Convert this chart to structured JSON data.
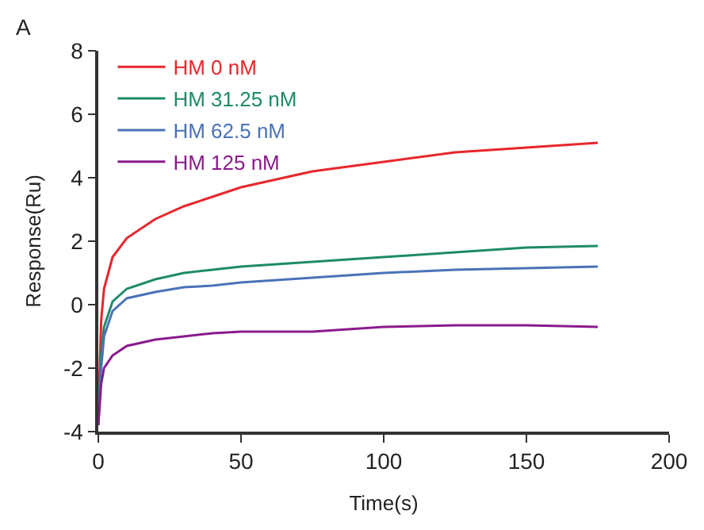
{
  "chart_data": {
    "type": "line",
    "xlabel": "Time(s)",
    "ylabel": "Response(Ru)",
    "annotations": [
      "A"
    ],
    "x": [
      0,
      1,
      2,
      5,
      10,
      20,
      30,
      40,
      50,
      75,
      100,
      125,
      150,
      175
    ],
    "series": [
      {
        "name": "HM 0 nM",
        "color": "#e8262b",
        "values": [
          -3.5,
          -0.5,
          0.5,
          1.5,
          2.1,
          2.7,
          3.1,
          3.4,
          3.7,
          4.2,
          4.5,
          4.8,
          4.95,
          5.1
        ]
      },
      {
        "name": "HM 31.25 nM",
        "color": "#1e8a6a",
        "values": [
          -3.5,
          -1.5,
          -0.7,
          0.1,
          0.5,
          0.8,
          1.0,
          1.1,
          1.2,
          1.35,
          1.5,
          1.65,
          1.8,
          1.85
        ]
      },
      {
        "name": "HM 62.5 nM",
        "color": "#4a72b8",
        "values": [
          -3.8,
          -2,
          -1,
          -0.2,
          0.2,
          0.4,
          0.55,
          0.6,
          0.7,
          0.85,
          1.0,
          1.1,
          1.15,
          1.2
        ]
      },
      {
        "name": "HM 125 nM",
        "color": "#8b1a8c",
        "values": [
          -3.8,
          -2.5,
          -2,
          -1.6,
          -1.3,
          -1.1,
          -1.0,
          -0.9,
          -0.85,
          -0.85,
          -0.7,
          -0.65,
          -0.65,
          -0.7
        ]
      }
    ],
    "xlim": [
      0,
      200
    ],
    "xticks": [
      0,
      50,
      100,
      150,
      200
    ],
    "ylim": [
      -4,
      8
    ],
    "yticks": [
      -4,
      -2,
      0,
      2,
      4,
      6,
      8
    ],
    "grid": false,
    "legend": "top left",
    "marker": "none",
    "line_style": "solid"
  }
}
